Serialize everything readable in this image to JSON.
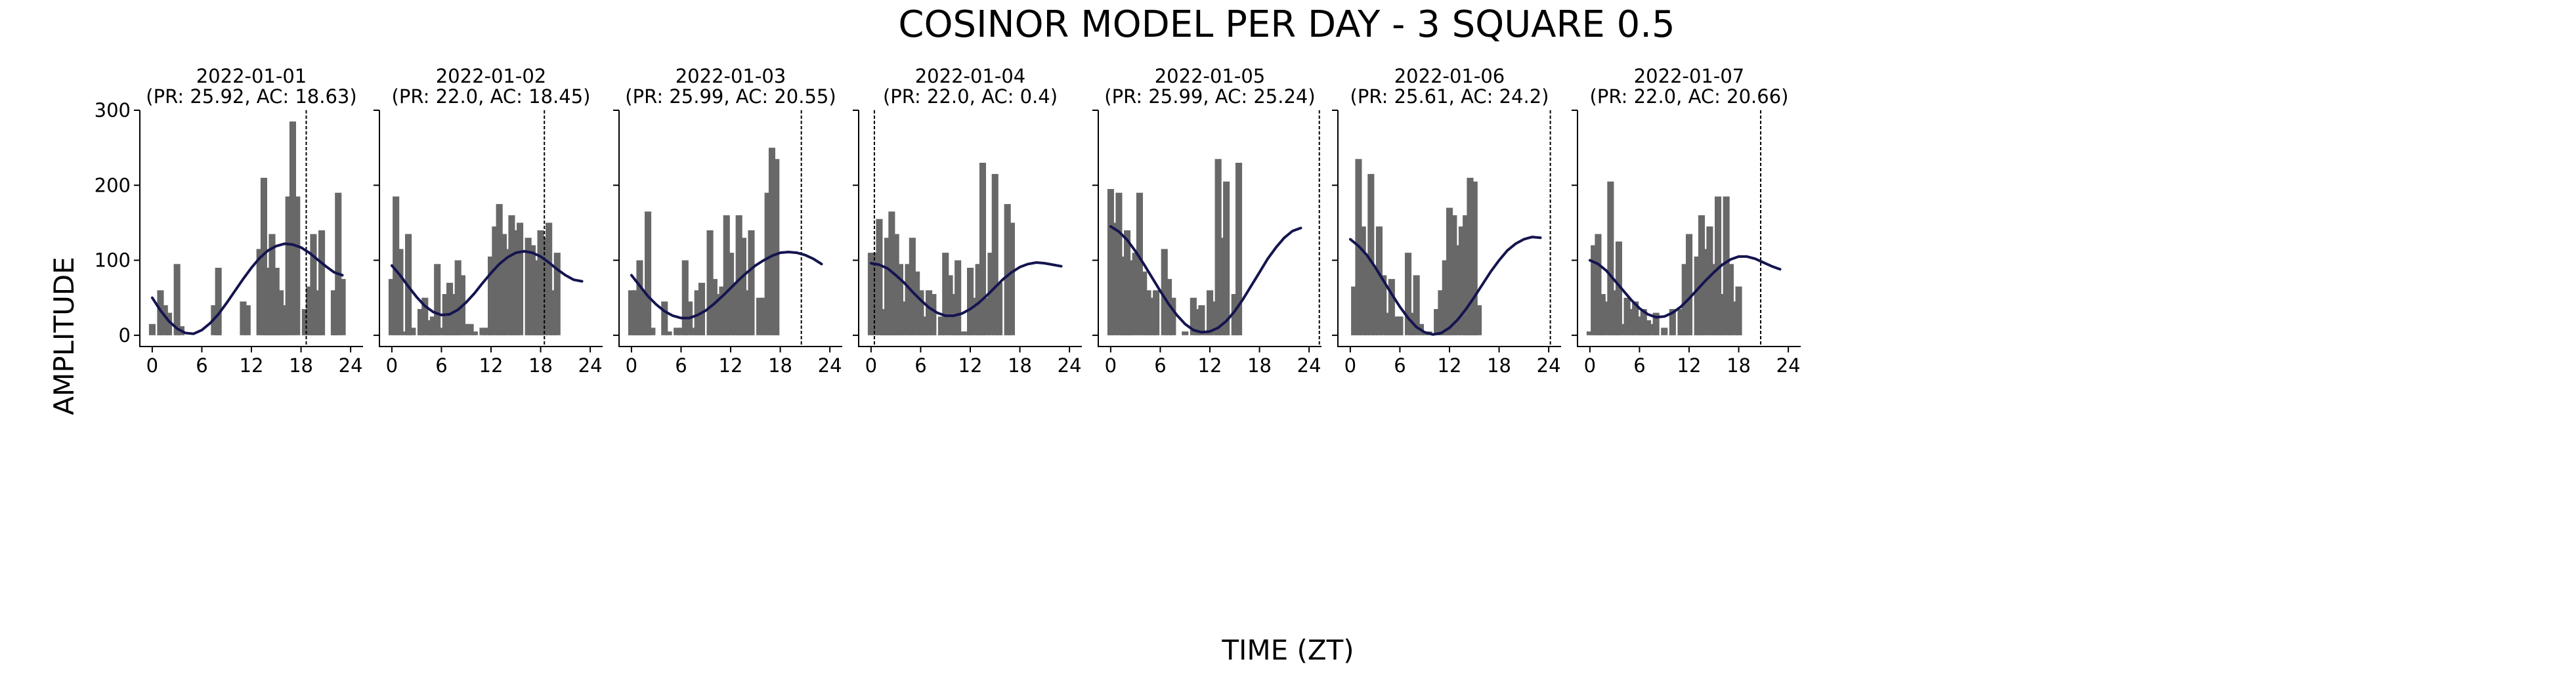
{
  "figure": {
    "title": "COSINOR MODEL PER DAY - 3 SQUARE 0.5",
    "xlabel": "TIME (ZT)",
    "ylabel": "AMPLITUDE",
    "colors": {
      "bars": "#686868",
      "curve": "#141450",
      "axis": "#000000",
      "vline": "#000000"
    }
  },
  "chart_data": [
    {
      "type": "bar",
      "title": "2022-01-01",
      "subtitle": "(PR: 25.92, AC: 18.63)",
      "period": 25.92,
      "acrophase": 18.63,
      "x_ticks": [
        "0",
        "6",
        "12",
        "18",
        "24"
      ],
      "y_ticks": [
        "0",
        "100",
        "200",
        "300"
      ],
      "xlim": [
        -1.5,
        25.5
      ],
      "ylim": [
        -15,
        300
      ],
      "bar_width": 0.8,
      "bins_x": [
        0,
        0.5,
        1,
        1.5,
        2,
        2.5,
        3,
        3.5,
        4,
        4.5,
        5,
        5.5,
        6,
        6.5,
        7,
        7.5,
        8,
        8.5,
        9,
        9.5,
        10,
        10.5,
        11,
        11.5,
        12,
        12.5,
        13,
        13.5,
        14,
        14.5,
        15,
        15.5,
        16,
        16.5,
        17,
        17.5,
        18,
        18.5,
        19,
        19.5,
        20,
        20.5,
        21,
        21.5,
        22,
        22.5,
        23,
        23.5
      ],
      "values": [
        15,
        0,
        60,
        40,
        30,
        0,
        95,
        12,
        0,
        0,
        0,
        0,
        0,
        0,
        0,
        40,
        90,
        0,
        0,
        0,
        0,
        0,
        45,
        40,
        0,
        0,
        115,
        210,
        90,
        135,
        90,
        60,
        40,
        185,
        285,
        185,
        0,
        35,
        65,
        135,
        60,
        140,
        0,
        0,
        60,
        190,
        75,
        0
      ],
      "cosinor_curve": {
        "x": [
          0,
          1,
          2,
          3,
          4,
          5,
          6,
          7,
          8,
          9,
          10,
          11,
          12,
          13,
          14,
          15,
          16,
          17,
          18,
          19,
          20,
          21,
          22,
          23
        ],
        "y": [
          50,
          33,
          19,
          9,
          3,
          2,
          7,
          16,
          28,
          43,
          59,
          75,
          90,
          103,
          113,
          119,
          122,
          121,
          117,
          110,
          101,
          92,
          84,
          80
        ]
      },
      "acrophase_line_x": 18.63
    },
    {
      "type": "bar",
      "title": "2022-01-02",
      "subtitle": "(PR: 22.0, AC: 18.45)",
      "period": 22.0,
      "acrophase": 18.45,
      "x_ticks": [
        "0",
        "6",
        "12",
        "18",
        "24"
      ],
      "y_ticks": [
        "0",
        "100",
        "200",
        "300"
      ],
      "xlim": [
        -1.5,
        25.5
      ],
      "ylim": [
        -15,
        300
      ],
      "bar_width": 0.8,
      "bins_x": [
        0,
        0.5,
        1,
        1.5,
        2,
        2.5,
        3,
        3.5,
        4,
        4.5,
        5,
        5.5,
        6,
        6.5,
        7,
        7.5,
        8,
        8.5,
        9,
        9.5,
        10,
        10.5,
        11,
        11.5,
        12,
        12.5,
        13,
        13.5,
        14,
        14.5,
        15,
        15.5,
        16,
        16.5,
        17,
        17.5,
        18,
        18.5,
        19,
        19.5,
        20,
        20.5,
        21,
        21.5,
        22,
        22.5,
        23,
        23.5
      ],
      "values": [
        75,
        185,
        115,
        5,
        135,
        10,
        0,
        35,
        50,
        20,
        25,
        95,
        10,
        55,
        70,
        55,
        100,
        80,
        15,
        15,
        5,
        0,
        10,
        10,
        105,
        145,
        175,
        135,
        115,
        160,
        140,
        150,
        0,
        130,
        120,
        100,
        140,
        130,
        150,
        60,
        110,
        0,
        0,
        0,
        0,
        0,
        0,
        0
      ],
      "cosinor_curve": {
        "x": [
          0,
          1,
          2,
          3,
          4,
          5,
          6,
          7,
          8,
          9,
          10,
          11,
          12,
          13,
          14,
          15,
          16,
          17,
          18,
          19,
          20,
          21,
          22,
          23
        ],
        "y": [
          93,
          80,
          65,
          51,
          39,
          31,
          27,
          28,
          34,
          44,
          56,
          70,
          83,
          95,
          104,
          110,
          112,
          110,
          105,
          97,
          88,
          80,
          74,
          72
        ]
      },
      "acrophase_line_x": 18.45
    },
    {
      "type": "bar",
      "title": "2022-01-03",
      "subtitle": "(PR: 25.99, AC: 20.55)",
      "period": 25.99,
      "acrophase": 20.55,
      "x_ticks": [
        "0",
        "6",
        "12",
        "18",
        "24"
      ],
      "y_ticks": [
        "0",
        "100",
        "200",
        "300"
      ],
      "xlim": [
        -1.5,
        25.5
      ],
      "ylim": [
        -15,
        300
      ],
      "bar_width": 0.8,
      "bins_x": [
        0,
        0.5,
        1,
        1.5,
        2,
        2.5,
        3,
        3.5,
        4,
        4.5,
        5,
        5.5,
        6,
        6.5,
        7,
        7.5,
        8,
        8.5,
        9,
        9.5,
        10,
        10.5,
        11,
        11.5,
        12,
        12.5,
        13,
        13.5,
        14,
        14.5,
        15,
        15.5,
        16,
        16.5,
        17,
        17.5,
        18,
        18.5,
        19,
        19.5,
        20,
        20.5,
        21,
        21.5,
        22,
        22.5,
        23,
        23.5
      ],
      "values": [
        60,
        60,
        100,
        60,
        165,
        10,
        0,
        0,
        45,
        5,
        0,
        10,
        10,
        100,
        45,
        10,
        60,
        70,
        0,
        140,
        75,
        55,
        65,
        160,
        110,
        70,
        160,
        130,
        60,
        140,
        0,
        50,
        50,
        190,
        250,
        235,
        0,
        0,
        0,
        0,
        0,
        0,
        0,
        0,
        0,
        0,
        0,
        0
      ],
      "cosinor_curve": {
        "x": [
          0,
          1,
          2,
          3,
          4,
          5,
          6,
          7,
          8,
          9,
          10,
          11,
          12,
          13,
          14,
          15,
          16,
          17,
          18,
          19,
          20,
          21,
          22,
          23
        ],
        "y": [
          80,
          66,
          52,
          41,
          32,
          26,
          23,
          23,
          27,
          33,
          42,
          52,
          63,
          74,
          84,
          93,
          100,
          106,
          110,
          111,
          110,
          107,
          102,
          95
        ]
      },
      "acrophase_line_x": 20.55
    },
    {
      "type": "bar",
      "title": "2022-01-04",
      "subtitle": "(PR: 22.0, AC: 0.4)",
      "period": 22.0,
      "acrophase": 0.4,
      "x_ticks": [
        "0",
        "6",
        "12",
        "18",
        "24"
      ],
      "y_ticks": [
        "0",
        "100",
        "200",
        "300"
      ],
      "xlim": [
        -1.5,
        25.5
      ],
      "ylim": [
        -15,
        300
      ],
      "bar_width": 0.8,
      "bins_x": [
        0,
        0.5,
        1,
        1.5,
        2,
        2.5,
        3,
        3.5,
        4,
        4.5,
        5,
        5.5,
        6,
        6.5,
        7,
        7.5,
        8,
        8.5,
        9,
        9.5,
        10,
        10.5,
        11,
        11.5,
        12,
        12.5,
        13,
        13.5,
        14,
        14.5,
        15,
        15.5,
        16,
        16.5,
        17,
        17.5,
        18,
        18.5,
        19,
        19.5,
        20,
        20.5,
        21,
        21.5,
        22,
        22.5,
        23,
        23.5
      ],
      "values": [
        110,
        110,
        155,
        35,
        130,
        165,
        135,
        95,
        45,
        95,
        130,
        85,
        60,
        25,
        60,
        55,
        0,
        25,
        110,
        80,
        55,
        100,
        5,
        5,
        90,
        50,
        95,
        230,
        50,
        110,
        215,
        70,
        0,
        175,
        150,
        0,
        0,
        0,
        0,
        0,
        0,
        0,
        0,
        0,
        0,
        0,
        0,
        0
      ],
      "cosinor_curve": {
        "x": [
          0,
          1,
          2,
          3,
          4,
          5,
          6,
          7,
          8,
          9,
          10,
          11,
          12,
          13,
          14,
          15,
          16,
          17,
          18,
          19,
          20,
          21,
          22,
          23
        ],
        "y": [
          96,
          94,
          89,
          80,
          70,
          58,
          47,
          37,
          30,
          26,
          26,
          29,
          35,
          43,
          53,
          64,
          75,
          84,
          91,
          95,
          97,
          96,
          94,
          92
        ]
      },
      "acrophase_line_x": 0.4
    },
    {
      "type": "bar",
      "title": "2022-01-05",
      "subtitle": "(PR: 25.99, AC: 25.24)",
      "period": 25.99,
      "acrophase": 25.24,
      "x_ticks": [
        "0",
        "6",
        "12",
        "18",
        "24"
      ],
      "y_ticks": [
        "0",
        "100",
        "200",
        "300"
      ],
      "xlim": [
        -1.5,
        25.5
      ],
      "ylim": [
        -15,
        300
      ],
      "bar_width": 0.8,
      "bins_x": [
        0,
        0.5,
        1,
        1.5,
        2,
        2.5,
        3,
        3.5,
        4,
        4.5,
        5,
        5.5,
        6,
        6.5,
        7,
        7.5,
        8,
        8.5,
        9,
        9.5,
        10,
        10.5,
        11,
        11.5,
        12,
        12.5,
        13,
        13.5,
        14,
        14.5,
        15,
        15.5,
        16,
        16.5,
        17,
        17.5,
        18,
        18.5,
        19,
        19.5,
        20,
        20.5,
        21,
        21.5,
        22,
        22.5,
        23,
        23.5
      ],
      "values": [
        195,
        150,
        190,
        105,
        140,
        100,
        110,
        190,
        85,
        60,
        50,
        60,
        0,
        115,
        75,
        50,
        0,
        0,
        5,
        0,
        50,
        35,
        40,
        5,
        60,
        45,
        235,
        130,
        205,
        0,
        55,
        230,
        0,
        0,
        0,
        0,
        0,
        0,
        0,
        0,
        0,
        0,
        0,
        0,
        0,
        0,
        0,
        0
      ],
      "cosinor_curve": {
        "x": [
          0,
          1,
          2,
          3,
          4,
          5,
          6,
          7,
          8,
          9,
          10,
          11,
          12,
          13,
          14,
          15,
          16,
          17,
          18,
          19,
          20,
          21,
          22,
          23
        ],
        "y": [
          145,
          138,
          127,
          112,
          95,
          77,
          59,
          42,
          27,
          15,
          7,
          4,
          5,
          10,
          19,
          32,
          48,
          66,
          84,
          102,
          117,
          130,
          139,
          143
        ]
      },
      "acrophase_line_x": 25.24
    },
    {
      "type": "bar",
      "title": "2022-01-06",
      "subtitle": "(PR: 25.61, AC: 24.2)",
      "period": 25.61,
      "acrophase": 24.2,
      "x_ticks": [
        "0",
        "6",
        "12",
        "18",
        "24"
      ],
      "y_ticks": [
        "0",
        "100",
        "200",
        "300"
      ],
      "xlim": [
        -1.5,
        25.5
      ],
      "ylim": [
        -15,
        300
      ],
      "bar_width": 0.8,
      "bins_x": [
        0,
        0.5,
        1,
        1.5,
        2,
        2.5,
        3,
        3.5,
        4,
        4.5,
        5,
        5.5,
        6,
        6.5,
        7,
        7.5,
        8,
        8.5,
        9,
        9.5,
        10,
        10.5,
        11,
        11.5,
        12,
        12.5,
        13,
        13.5,
        14,
        14.5,
        15,
        15.5,
        16,
        16.5,
        17,
        17.5,
        18,
        18.5,
        19,
        19.5,
        20,
        20.5,
        21,
        21.5,
        22,
        22.5,
        23,
        23.5
      ],
      "values": [
        0,
        65,
        235,
        145,
        105,
        215,
        90,
        145,
        80,
        30,
        75,
        25,
        25,
        0,
        110,
        30,
        80,
        15,
        5,
        5,
        0,
        35,
        60,
        100,
        170,
        160,
        120,
        145,
        160,
        210,
        205,
        40,
        0,
        0,
        0,
        0,
        0,
        0,
        0,
        0,
        0,
        0,
        0,
        0,
        0,
        0,
        0,
        0
      ],
      "cosinor_curve": {
        "x": [
          0,
          1,
          2,
          3,
          4,
          5,
          6,
          7,
          8,
          9,
          10,
          11,
          12,
          13,
          14,
          15,
          16,
          17,
          18,
          19,
          20,
          21,
          22,
          23
        ],
        "y": [
          128,
          119,
          107,
          91,
          73,
          55,
          38,
          23,
          11,
          4,
          1,
          3,
          10,
          21,
          35,
          51,
          68,
          85,
          100,
          113,
          122,
          128,
          131,
          130
        ]
      },
      "acrophase_line_x": 24.2
    },
    {
      "type": "bar",
      "title": "2022-01-07",
      "subtitle": "(PR: 22.0, AC: 20.66)",
      "period": 22.0,
      "acrophase": 20.66,
      "x_ticks": [
        "0",
        "6",
        "12",
        "18",
        "24"
      ],
      "y_ticks": [
        "0",
        "100",
        "200",
        "300"
      ],
      "xlim": [
        -1.5,
        25.5
      ],
      "ylim": [
        -15,
        300
      ],
      "bar_width": 0.8,
      "bins_x": [
        0,
        0.5,
        1,
        1.5,
        2,
        2.5,
        3,
        3.5,
        4,
        4.5,
        5,
        5.5,
        6,
        6.5,
        7,
        7.5,
        8,
        8.5,
        9,
        9.5,
        10,
        10.5,
        11,
        11.5,
        12,
        12.5,
        13,
        13.5,
        14,
        14.5,
        15,
        15.5,
        16,
        16.5,
        17,
        17.5,
        18,
        18.5,
        19,
        19.5,
        20,
        20.5,
        21,
        21.5,
        22,
        22.5,
        23,
        23.5
      ],
      "values": [
        5,
        120,
        135,
        55,
        45,
        205,
        60,
        125,
        15,
        50,
        35,
        45,
        25,
        35,
        20,
        15,
        30,
        0,
        10,
        0,
        35,
        0,
        35,
        95,
        135,
        0,
        105,
        160,
        115,
        145,
        95,
        185,
        55,
        185,
        95,
        45,
        65,
        0,
        0,
        0,
        0,
        0,
        0,
        0,
        0,
        0,
        0,
        0
      ],
      "cosinor_curve": {
        "x": [
          0,
          1,
          2,
          3,
          4,
          5,
          6,
          7,
          8,
          9,
          10,
          11,
          12,
          13,
          14,
          15,
          16,
          17,
          18,
          19,
          20,
          21,
          22,
          23
        ],
        "y": [
          100,
          95,
          86,
          73,
          60,
          47,
          36,
          28,
          24,
          25,
          30,
          38,
          49,
          61,
          73,
          84,
          94,
          101,
          105,
          105,
          102,
          97,
          92,
          88
        ]
      },
      "acrophase_line_x": 20.66
    }
  ]
}
